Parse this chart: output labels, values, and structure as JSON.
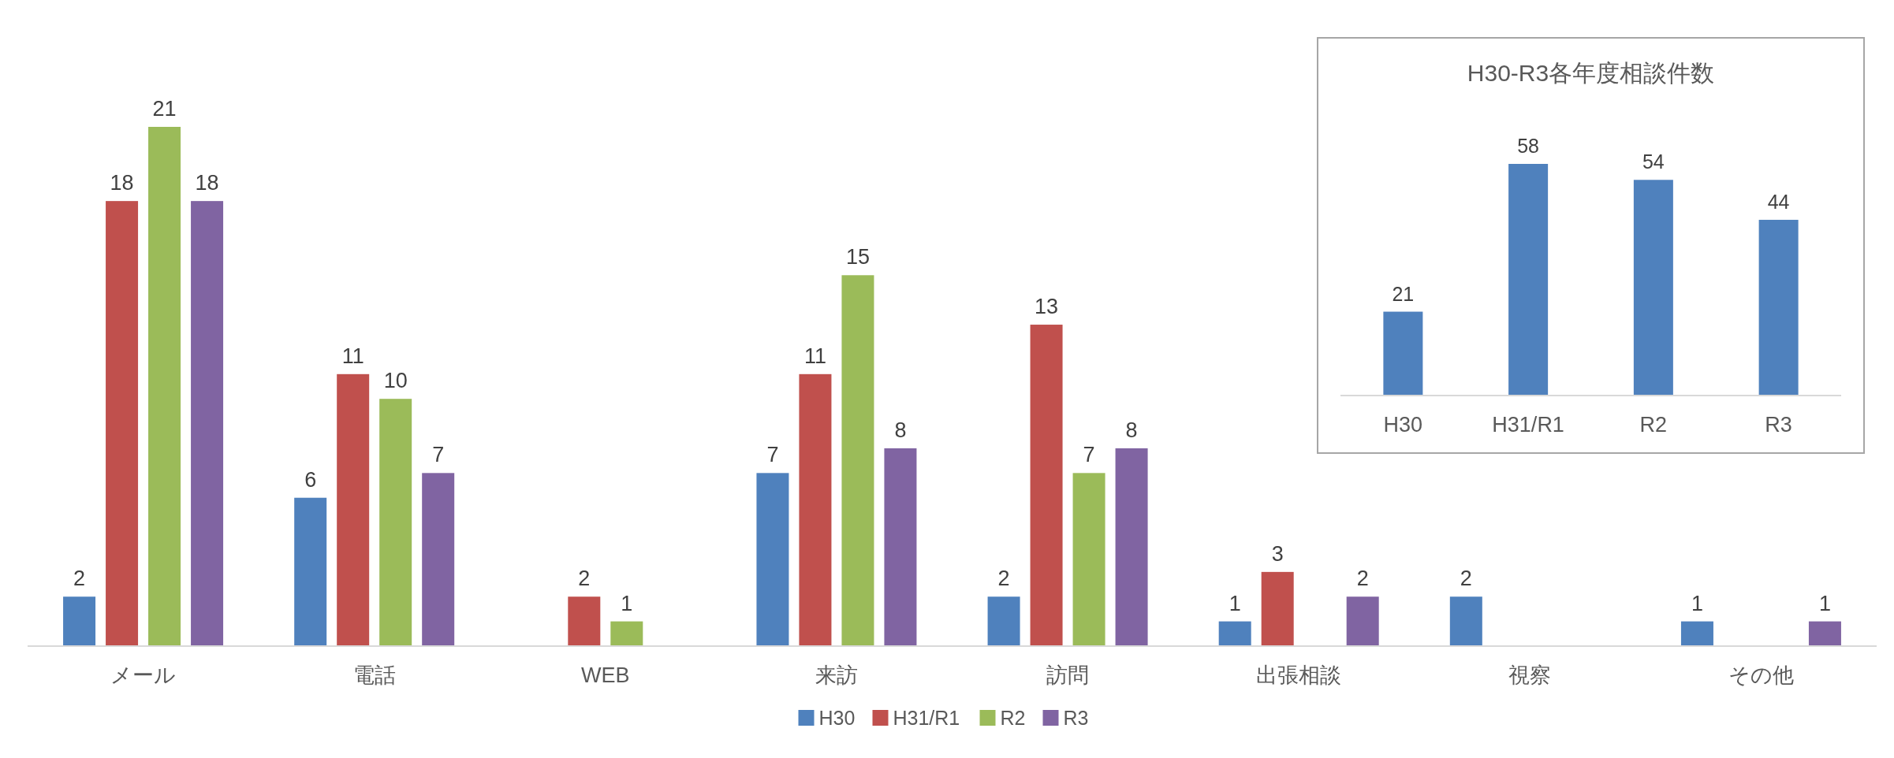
{
  "chart_data": [
    {
      "type": "bar",
      "categories": [
        "メール",
        "電話",
        "WEB",
        "来訪",
        "訪問",
        "出張相談",
        "視察",
        "その他"
      ],
      "series": [
        {
          "name": "H30",
          "color": "#4f81bd",
          "values": [
            2,
            6,
            null,
            7,
            2,
            1,
            2,
            1
          ]
        },
        {
          "name": "H31/R1",
          "color": "#c0504d",
          "values": [
            18,
            11,
            2,
            11,
            13,
            3,
            null,
            null
          ]
        },
        {
          "name": "R2",
          "color": "#9bbb59",
          "values": [
            21,
            10,
            1,
            15,
            7,
            null,
            null,
            null
          ]
        },
        {
          "name": "R3",
          "color": "#8064a2",
          "values": [
            18,
            7,
            null,
            8,
            8,
            2,
            null,
            1
          ]
        }
      ],
      "data_labels": true,
      "legend": "bottom",
      "tick_labels": "x"
    },
    {
      "type": "bar",
      "title": "H30-R3各年度相談件数",
      "categories": [
        "H30",
        "H31/R1",
        "R2",
        "R3"
      ],
      "values": [
        21,
        58,
        54,
        44
      ],
      "color": "#4f81bd",
      "data_labels": true,
      "tick_labels": "x"
    }
  ]
}
